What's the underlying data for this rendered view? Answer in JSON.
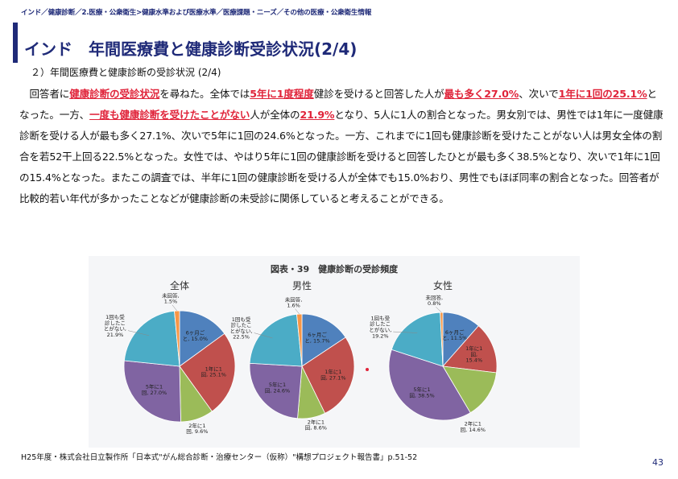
{
  "header": {
    "breadcrumb": "インド／健康診断／2.医療・公衆衛生>健康水準および医療水準／医療課題・ニーズ／その他の医療・公衆衛生情報",
    "title": "インド　年間医療費と健康診断受診状況(2/4)",
    "subtitle": "２）年間医療費と健康診断の受診状況 (2/4)"
  },
  "body": {
    "s1": "　回答者に",
    "h1": "健康診断の受診状況",
    "s2": "を尋ねた。全体では",
    "h2": "5年に1度程度",
    "s3": "健診を受けると回答した人が",
    "h3": "最も多く27.0%",
    "s4": "、次いで",
    "h4": "1年に1回の25.1%",
    "s5": "となった。一方、",
    "h5": "一度も健康診断を受けたことがない",
    "s6": "人が全体の",
    "h6": "21.9%",
    "s7": "となり、5人に1人の割合となった。男女別では、男性では1年に一度健康診断を受ける人が最も多く27.1%、次いで5年に1回の24.6%となった。一方、これまでに1回も健康診断を受けたことがない人は男女全体の割合を若52干上回る22.5%となった。女性では、やはり5年に1回の健康診断を受けると回答したひとが最も多く38.5%となり、次いで1年に1回の15.4%となった。またこの調査では、半年に1回の健康診断を受ける人が全体でも15.0%おり、男性でもほぼ同率の割合となった。回答者が比較的若い年代が多かったことなどが健康診断の未受診に関係していると考えることができる。"
  },
  "chart_data": {
    "type": "pie",
    "title": "図表・39　健康診断の受診頻度",
    "colors": {
      "6m": "#4f81bd",
      "1y": "#c0504d",
      "2y": "#9bbb59",
      "5y": "#8064a2",
      "never": "#4bacc6",
      "na": "#f79646"
    },
    "charts": [
      {
        "name": "全体",
        "slices": [
          {
            "key": "6m",
            "label": "6ヶ月ご\nと, 15.0%",
            "value": 15.0
          },
          {
            "key": "1y",
            "label": "1年に1\n回, 25.1%",
            "value": 25.1
          },
          {
            "key": "2y",
            "label": "2年に1\n回, 9.6%",
            "value": 9.6
          },
          {
            "key": "5y",
            "label": "5年に1\n回, 27.0%",
            "value": 27.0
          },
          {
            "key": "never",
            "label": "1回も受\n診したこ\nとがない,\n21.9%",
            "value": 21.9
          },
          {
            "key": "na",
            "label": "未回答,\n1.5%",
            "value": 1.5
          }
        ]
      },
      {
        "name": "男性",
        "slices": [
          {
            "key": "6m",
            "label": "6ヶ月ご\nと, 15.7%",
            "value": 15.7
          },
          {
            "key": "1y",
            "label": "1年に1\n回, 27.1%",
            "value": 27.1
          },
          {
            "key": "2y",
            "label": "2年に1\n回, 8.6%",
            "value": 8.6
          },
          {
            "key": "5y",
            "label": "5年に1\n回, 24.6%",
            "value": 24.6
          },
          {
            "key": "never",
            "label": "1回も受\n診したこ\nとがない,\n22.5%",
            "value": 22.5
          },
          {
            "key": "na",
            "label": "未回答,\n1.6%",
            "value": 1.6
          }
        ]
      },
      {
        "name": "女性",
        "slices": [
          {
            "key": "6m",
            "label": "6ヶ月ご\nと, 11.5%",
            "value": 11.5
          },
          {
            "key": "1y",
            "label": "1年に1\n回,\n15.4%",
            "value": 15.4
          },
          {
            "key": "2y",
            "label": "2年に1\n回, 14.6%",
            "value": 14.6
          },
          {
            "key": "5y",
            "label": "5年に1\n回, 38.5%",
            "value": 38.5
          },
          {
            "key": "never",
            "label": "1回も受\n診したこ\nとがない,\n19.2%",
            "value": 19.2
          },
          {
            "key": "na",
            "label": "未回答,\n0.8%",
            "value": 0.8
          }
        ]
      }
    ]
  },
  "footer": {
    "source": "H25年度・株式会社日立製作所「日本式\"がん総合診断・治療センター（仮称）\"構想プロジェクト報告書」p.51-52",
    "page": "43"
  }
}
